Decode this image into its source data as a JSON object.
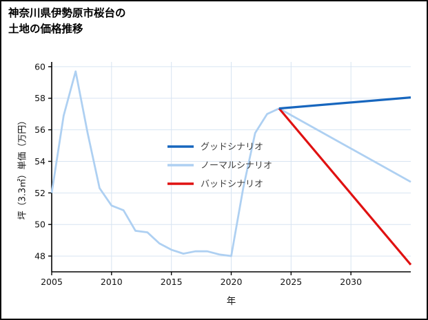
{
  "title": {
    "line1": "神奈川県伊勢原市桜台の",
    "line2": "土地の価格推移"
  },
  "chart_data": {
    "type": "line",
    "title": "神奈川県伊勢原市桜台の土地の価格推移",
    "xlabel": "年",
    "ylabel": "坪（3.3㎡）単価（万円）",
    "xlim": [
      2005,
      2035
    ],
    "ylim": [
      47.0,
      60.3
    ],
    "x_ticks": [
      2005,
      2010,
      2015,
      2020,
      2025,
      2030
    ],
    "y_ticks": [
      48,
      50,
      52,
      54,
      56,
      58,
      60
    ],
    "grid": true,
    "grid_color": "#d7e4f2",
    "legend_position": "center-left",
    "legend_text_color": "#3d3d3d",
    "series": [
      {
        "name": "グッドシナリオ",
        "color": "#1766be",
        "width": 3.2,
        "x": [
          2024,
          2035
        ],
        "y": [
          57.35,
          58.05
        ]
      },
      {
        "name": "ノーマルシナリオ",
        "color": "#aed0f2",
        "width": 2.8,
        "x": [
          2005,
          2006,
          2007,
          2008,
          2009,
          2010,
          2011,
          2012,
          2013,
          2014,
          2015,
          2016,
          2017,
          2018,
          2019,
          2020,
          2021,
          2022,
          2023,
          2024,
          2035
        ],
        "y": [
          52.0,
          56.9,
          59.7,
          55.8,
          52.3,
          51.2,
          50.9,
          49.6,
          49.5,
          48.8,
          48.4,
          48.15,
          48.3,
          48.3,
          48.1,
          48.0,
          52.3,
          55.8,
          57.0,
          57.35,
          52.7
        ]
      },
      {
        "name": "バッドシナリオ",
        "color": "#e01111",
        "width": 3.2,
        "x": [
          2024,
          2035
        ],
        "y": [
          57.35,
          47.45
        ]
      }
    ]
  }
}
